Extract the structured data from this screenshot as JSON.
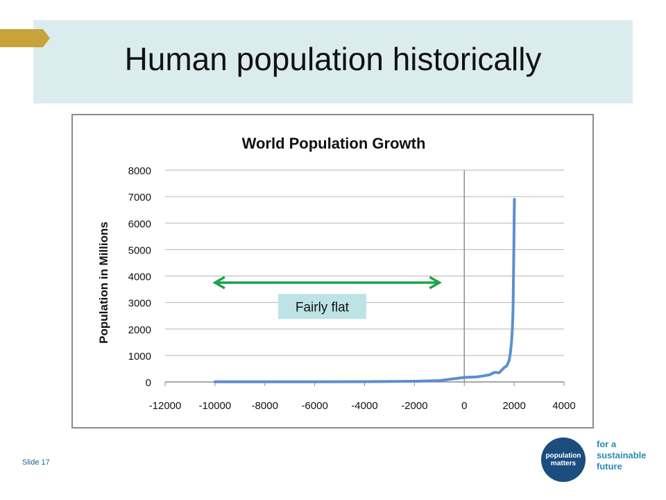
{
  "slide": {
    "title": "Human population historically",
    "slide_number": "Slide 17",
    "accent_band_color": "#dbecee",
    "gold_tab_color": "#c7a33a"
  },
  "logo": {
    "line1": "population",
    "line2": "matters",
    "tagline_1": "for a",
    "tagline_2": "sustainable",
    "tagline_3": "future",
    "circle_color": "#1b4e7e",
    "tagline_color": "#2b8ab8"
  },
  "chart_data": {
    "type": "line",
    "title": "World Population Growth",
    "xlabel": "",
    "ylabel": "Population in Millions",
    "xlim": [
      -12000,
      4000
    ],
    "ylim": [
      0,
      8000
    ],
    "x_ticks": [
      -12000,
      -10000,
      -8000,
      -6000,
      -4000,
      -2000,
      0,
      2000,
      4000
    ],
    "y_ticks": [
      0,
      1000,
      2000,
      3000,
      4000,
      5000,
      6000,
      7000,
      8000
    ],
    "grid": true,
    "series": [
      {
        "color": "#5b8fd0",
        "x": [
          -10000,
          -8000,
          -6000,
          -4000,
          -2000,
          -1000,
          0,
          500,
          1000,
          1200,
          1400,
          1600,
          1700,
          1800,
          1850,
          1900,
          1930,
          1950,
          1960,
          1970,
          1980,
          1990,
          2000,
          2010
        ],
        "y": [
          4,
          5,
          7,
          10,
          27,
          50,
          170,
          190,
          265,
          360,
          350,
          545,
          600,
          810,
          1100,
          1550,
          2070,
          2520,
          3030,
          3700,
          4450,
          5300,
          6100,
          6900
        ]
      }
    ],
    "annotations": [
      {
        "type": "double-arrow",
        "x_from": -10000,
        "x_to": -1000,
        "y": 3750,
        "color": "#1aa34a"
      },
      {
        "type": "label",
        "text": "Fairly flat",
        "x": -5700,
        "y": 2850,
        "background": "#bde3e5"
      }
    ]
  }
}
